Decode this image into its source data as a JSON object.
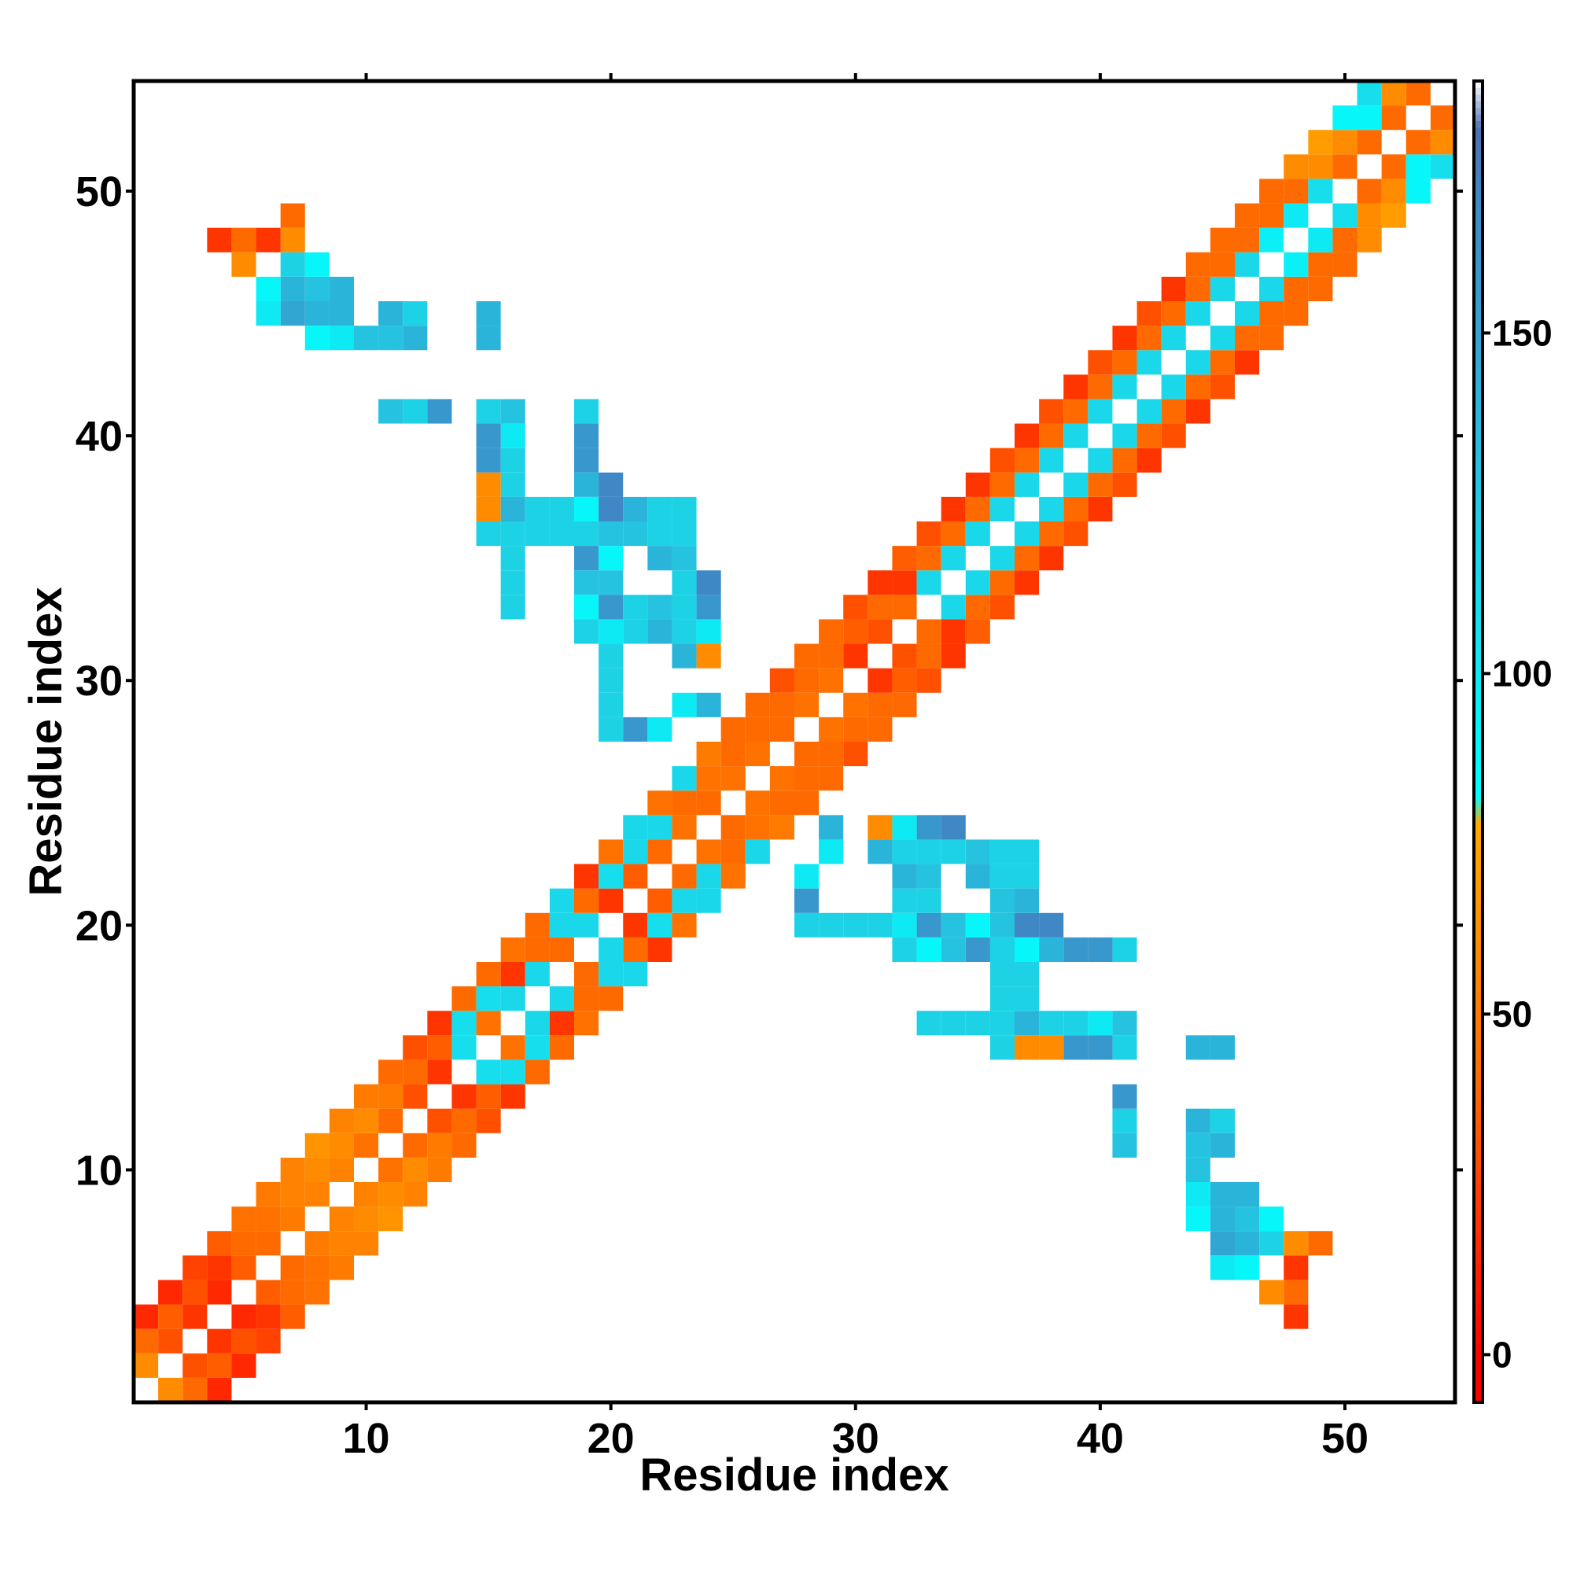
{
  "chart_data": {
    "type": "heatmap",
    "title": "",
    "xlabel": "Residue index",
    "ylabel": "Residue index",
    "xlim": [
      0.5,
      54.5
    ],
    "ylim": [
      0.5,
      54.5
    ],
    "xticks": [
      10,
      20,
      30,
      40,
      50
    ],
    "yticks": [
      10,
      20,
      30,
      40,
      50
    ],
    "colorbar": {
      "range": [
        -7,
        187
      ],
      "ticks": [
        0,
        50,
        100,
        150
      ],
      "stops": [
        {
          "value": 0,
          "color": "#ff0000"
        },
        {
          "value": 40,
          "color": "#ff6a00"
        },
        {
          "value": 78,
          "color": "#ffaa00"
        },
        {
          "value": 82,
          "color": "#00ffff"
        },
        {
          "value": 120,
          "color": "#1ed2e6"
        },
        {
          "value": 170,
          "color": "#3f88c5"
        },
        {
          "value": 180,
          "color": "#4f6fb0"
        },
        {
          "value": 187,
          "color": "#ffffff"
        }
      ]
    },
    "diagonal_value": 187,
    "pairs": [
      [
        1,
        2,
        60
      ],
      [
        1,
        3,
        40
      ],
      [
        1,
        4,
        15
      ],
      [
        2,
        3,
        30
      ],
      [
        2,
        4,
        35
      ],
      [
        2,
        5,
        15
      ],
      [
        3,
        4,
        20
      ],
      [
        3,
        5,
        30
      ],
      [
        3,
        6,
        25
      ],
      [
        4,
        5,
        15
      ],
      [
        4,
        6,
        20
      ],
      [
        4,
        7,
        35
      ],
      [
        5,
        6,
        35
      ],
      [
        5,
        7,
        40
      ],
      [
        5,
        8,
        45
      ],
      [
        6,
        7,
        40
      ],
      [
        6,
        8,
        45
      ],
      [
        6,
        9,
        50
      ],
      [
        7,
        8,
        50
      ],
      [
        7,
        9,
        55
      ],
      [
        7,
        10,
        55
      ],
      [
        8,
        9,
        55
      ],
      [
        8,
        10,
        60
      ],
      [
        8,
        11,
        65
      ],
      [
        9,
        10,
        55
      ],
      [
        9,
        11,
        60
      ],
      [
        9,
        12,
        55
      ],
      [
        10,
        11,
        45
      ],
      [
        10,
        12,
        60
      ],
      [
        10,
        13,
        50
      ],
      [
        11,
        12,
        40
      ],
      [
        11,
        13,
        50
      ],
      [
        11,
        14,
        40
      ],
      [
        12,
        13,
        30
      ],
      [
        12,
        14,
        40
      ],
      [
        12,
        15,
        30
      ],
      [
        13,
        14,
        20
      ],
      [
        13,
        15,
        35
      ],
      [
        13,
        16,
        20
      ],
      [
        14,
        15,
        110
      ],
      [
        14,
        16,
        110
      ],
      [
        14,
        17,
        40
      ],
      [
        15,
        16,
        45
      ],
      [
        15,
        17,
        110
      ],
      [
        15,
        18,
        40
      ],
      [
        16,
        17,
        115
      ],
      [
        16,
        18,
        20
      ],
      [
        16,
        19,
        45
      ],
      [
        17,
        18,
        115
      ],
      [
        17,
        19,
        40
      ],
      [
        17,
        20,
        40
      ],
      [
        18,
        19,
        40
      ],
      [
        18,
        20,
        115
      ],
      [
        18,
        21,
        115
      ],
      [
        19,
        20,
        115
      ],
      [
        19,
        21,
        40
      ],
      [
        19,
        22,
        20
      ],
      [
        20,
        21,
        20
      ],
      [
        20,
        22,
        110
      ],
      [
        20,
        23,
        45
      ],
      [
        21,
        22,
        35
      ],
      [
        21,
        23,
        115
      ],
      [
        21,
        24,
        115
      ],
      [
        22,
        23,
        40
      ],
      [
        22,
        24,
        115
      ],
      [
        22,
        25,
        45
      ],
      [
        23,
        24,
        45
      ],
      [
        23,
        25,
        40
      ],
      [
        23,
        26,
        115
      ],
      [
        24,
        25,
        40
      ],
      [
        24,
        26,
        45
      ],
      [
        24,
        27,
        50
      ],
      [
        25,
        26,
        45
      ],
      [
        25,
        27,
        40
      ],
      [
        25,
        28,
        40
      ],
      [
        26,
        27,
        45
      ],
      [
        26,
        28,
        40
      ],
      [
        26,
        29,
        40
      ],
      [
        27,
        28,
        40
      ],
      [
        27,
        29,
        40
      ],
      [
        27,
        30,
        30
      ],
      [
        28,
        29,
        45
      ],
      [
        28,
        30,
        40
      ],
      [
        28,
        31,
        40
      ],
      [
        29,
        30,
        45
      ],
      [
        29,
        31,
        40
      ],
      [
        29,
        32,
        40
      ],
      [
        30,
        31,
        20
      ],
      [
        30,
        32,
        35
      ],
      [
        30,
        33,
        30
      ],
      [
        31,
        32,
        30
      ],
      [
        31,
        33,
        40
      ],
      [
        31,
        34,
        20
      ],
      [
        32,
        33,
        40
      ],
      [
        32,
        34,
        20
      ],
      [
        32,
        35,
        35
      ],
      [
        33,
        34,
        115
      ],
      [
        33,
        35,
        40
      ],
      [
        33,
        36,
        30
      ],
      [
        34,
        35,
        115
      ],
      [
        34,
        36,
        40
      ],
      [
        34,
        37,
        20
      ],
      [
        35,
        36,
        115
      ],
      [
        35,
        37,
        40
      ],
      [
        35,
        38,
        20
      ],
      [
        36,
        37,
        115
      ],
      [
        36,
        38,
        40
      ],
      [
        36,
        39,
        30
      ],
      [
        37,
        38,
        115
      ],
      [
        37,
        39,
        40
      ],
      [
        37,
        40,
        20
      ],
      [
        38,
        39,
        115
      ],
      [
        38,
        40,
        40
      ],
      [
        38,
        41,
        30
      ],
      [
        39,
        40,
        115
      ],
      [
        39,
        41,
        40
      ],
      [
        39,
        42,
        20
      ],
      [
        40,
        41,
        115
      ],
      [
        40,
        42,
        40
      ],
      [
        40,
        43,
        30
      ],
      [
        41,
        42,
        115
      ],
      [
        41,
        43,
        40
      ],
      [
        41,
        44,
        20
      ],
      [
        42,
        43,
        115
      ],
      [
        42,
        44,
        40
      ],
      [
        42,
        45,
        30
      ],
      [
        43,
        44,
        115
      ],
      [
        43,
        45,
        40
      ],
      [
        43,
        46,
        20
      ],
      [
        44,
        45,
        115
      ],
      [
        44,
        46,
        40
      ],
      [
        44,
        47,
        40
      ],
      [
        45,
        46,
        115
      ],
      [
        45,
        47,
        40
      ],
      [
        45,
        48,
        40
      ],
      [
        46,
        47,
        115
      ],
      [
        46,
        48,
        40
      ],
      [
        46,
        49,
        40
      ],
      [
        47,
        48,
        95
      ],
      [
        47,
        49,
        40
      ],
      [
        47,
        50,
        40
      ],
      [
        48,
        49,
        100
      ],
      [
        48,
        50,
        40
      ],
      [
        48,
        51,
        60
      ],
      [
        49,
        50,
        110
      ],
      [
        49,
        51,
        60
      ],
      [
        49,
        52,
        70
      ],
      [
        50,
        51,
        40
      ],
      [
        50,
        52,
        60
      ],
      [
        50,
        53,
        90
      ],
      [
        51,
        52,
        40
      ],
      [
        51,
        53,
        90
      ],
      [
        51,
        54,
        110
      ],
      [
        52,
        53,
        40
      ],
      [
        52,
        54,
        60
      ],
      [
        53,
        54,
        40
      ],
      [
        4,
        48,
        20
      ],
      [
        5,
        48,
        40
      ],
      [
        5,
        47,
        60
      ],
      [
        8,
        45,
        140
      ],
      [
        8,
        46,
        130
      ],
      [
        8,
        47,
        90
      ],
      [
        7,
        45,
        150
      ],
      [
        7,
        46,
        140
      ],
      [
        7,
        47,
        120
      ],
      [
        9,
        45,
        140
      ],
      [
        9,
        44,
        100
      ],
      [
        10,
        44,
        130
      ],
      [
        9,
        46,
        140
      ],
      [
        12,
        44,
        140
      ],
      [
        12,
        45,
        120
      ],
      [
        15,
        45,
        140
      ],
      [
        12,
        41,
        120
      ],
      [
        13,
        41,
        160
      ],
      [
        15,
        41,
        120
      ],
      [
        16,
        41,
        130
      ],
      [
        19,
        41,
        120
      ],
      [
        15,
        39,
        160
      ],
      [
        16,
        39,
        120
      ],
      [
        19,
        39,
        160
      ],
      [
        16,
        38,
        120
      ],
      [
        19,
        38,
        140
      ],
      [
        15,
        37,
        60
      ],
      [
        16,
        37,
        140
      ],
      [
        19,
        37,
        90
      ],
      [
        20,
        37,
        170
      ],
      [
        15,
        36,
        120
      ],
      [
        16,
        36,
        120
      ],
      [
        17,
        36,
        120
      ],
      [
        18,
        36,
        120
      ],
      [
        19,
        36,
        120
      ],
      [
        20,
        36,
        130
      ],
      [
        21,
        36,
        130
      ],
      [
        22,
        36,
        120
      ],
      [
        23,
        36,
        120
      ],
      [
        16,
        35,
        120
      ],
      [
        19,
        35,
        160
      ],
      [
        20,
        35,
        90
      ],
      [
        22,
        35,
        140
      ],
      [
        23,
        35,
        130
      ],
      [
        19,
        34,
        130
      ],
      [
        20,
        34,
        130
      ],
      [
        16,
        33,
        120
      ],
      [
        19,
        33,
        90
      ],
      [
        20,
        33,
        160
      ],
      [
        23,
        33,
        120
      ],
      [
        24,
        33,
        160
      ],
      [
        19,
        32,
        120
      ],
      [
        20,
        32,
        100
      ],
      [
        21,
        32,
        120
      ],
      [
        22,
        32,
        140
      ],
      [
        23,
        32,
        120
      ],
      [
        24,
        32,
        100
      ],
      [
        20,
        31,
        120
      ],
      [
        23,
        31,
        140
      ],
      [
        24,
        31,
        60
      ],
      [
        20,
        29,
        120
      ],
      [
        23,
        29,
        100
      ],
      [
        24,
        29,
        140
      ],
      [
        20,
        28,
        120
      ],
      [
        21,
        28,
        160
      ],
      [
        22,
        28,
        100
      ],
      [
        41,
        12,
        160
      ],
      [
        41,
        11,
        130
      ],
      [
        44,
        11,
        130
      ],
      [
        45,
        11,
        140
      ],
      [
        44,
        15,
        140
      ],
      [
        45,
        9,
        140
      ],
      [
        44,
        8,
        90
      ],
      [
        45,
        8,
        130
      ],
      [
        46,
        8,
        120
      ],
      [
        45,
        7,
        140
      ],
      [
        46,
        7,
        140
      ],
      [
        47,
        7,
        130
      ],
      [
        48,
        7,
        60
      ],
      [
        49,
        7,
        40
      ],
      [
        45,
        6,
        100
      ],
      [
        46,
        6,
        90
      ],
      [
        48,
        6,
        20
      ],
      [
        34,
        16,
        120
      ],
      [
        36,
        16,
        120
      ],
      [
        37,
        16,
        120
      ],
      [
        38,
        16,
        140
      ],
      [
        39,
        16,
        130
      ],
      [
        40,
        16,
        100
      ],
      [
        41,
        16,
        120
      ],
      [
        37,
        15,
        120
      ],
      [
        38,
        15,
        60
      ],
      [
        40,
        15,
        160
      ],
      [
        41,
        15,
        100
      ],
      [
        37,
        17,
        120
      ],
      [
        37,
        18,
        120
      ],
      [
        33,
        19,
        120
      ],
      [
        34,
        19,
        90
      ],
      [
        35,
        19,
        130
      ],
      [
        36,
        19,
        160
      ],
      [
        37,
        19,
        130
      ],
      [
        38,
        19,
        90
      ],
      [
        39,
        19,
        140
      ],
      [
        40,
        19,
        160
      ],
      [
        41,
        19,
        120
      ],
      [
        32,
        20,
        120
      ],
      [
        33,
        20,
        120
      ],
      [
        34,
        20,
        160
      ],
      [
        35,
        20,
        140
      ],
      [
        36,
        20,
        90
      ],
      [
        37,
        20,
        140
      ],
      [
        38,
        20,
        170
      ],
      [
        33,
        21,
        120
      ],
      [
        37,
        21,
        140
      ],
      [
        33,
        22,
        130
      ],
      [
        36,
        22,
        140
      ],
      [
        37,
        22,
        120
      ],
      [
        36,
        23,
        140
      ],
      [
        37,
        23,
        120
      ],
      [
        32,
        23,
        140
      ],
      [
        33,
        23,
        120
      ],
      [
        34,
        23,
        120
      ],
      [
        28,
        21,
        160
      ],
      [
        28,
        20,
        120
      ],
      [
        30,
        20,
        120
      ],
      [
        32,
        24,
        60
      ],
      [
        33,
        24,
        120
      ],
      [
        34,
        24,
        170
      ]
    ]
  }
}
